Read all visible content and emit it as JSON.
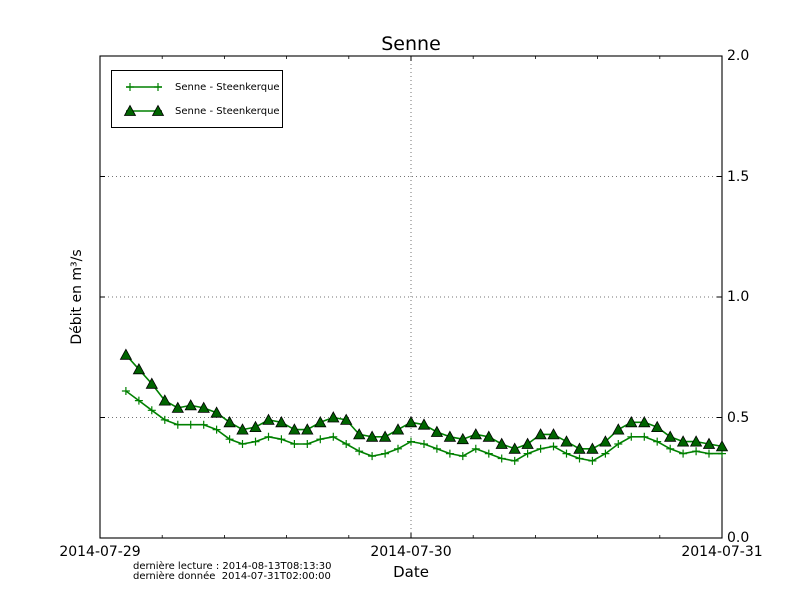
{
  "annotations": {
    "derniere_lecture": "dernière lecture : 2014-08-13T08:13:30",
    "derniere_donnee": "dernière donnée  2014-07-31T02:00:00"
  },
  "chart_data": {
    "type": "line",
    "title": "Senne",
    "xlabel": "Date",
    "ylabel": "Débit en m³/s",
    "x_axis": {
      "tick_labels": [
        "2014-07-29",
        "2014-07-30",
        "2014-07-31"
      ],
      "tick_positions_hours": [
        0,
        24,
        48
      ],
      "minor_tick_interval_hours": 4.8,
      "range_hours": [
        0,
        48
      ]
    },
    "y_axis": {
      "tick_labels": [
        "0.0",
        "0.5",
        "1.0",
        "1.5",
        "2.0"
      ],
      "tick_values": [
        0.0,
        0.5,
        1.0,
        1.5,
        2.0
      ],
      "range": [
        0.0,
        2.0
      ],
      "labels_side": "right"
    },
    "grid": {
      "style": "dotted",
      "y_lines": [
        0.5,
        1.0,
        1.5
      ],
      "x_lines_hours": [
        24
      ]
    },
    "legend": {
      "position": "upper-left",
      "entries": [
        "Senne - Steenkerque",
        "Senne - Steenkerque"
      ]
    },
    "series": [
      {
        "name": "Senne - Steenkerque",
        "marker": "plus",
        "line_color": "#008000",
        "x_start_hour": 2,
        "x_step_hours": 1,
        "values": [
          0.61,
          0.57,
          0.53,
          0.49,
          0.47,
          0.47,
          0.47,
          0.45,
          0.41,
          0.39,
          0.4,
          0.42,
          0.41,
          0.39,
          0.39,
          0.41,
          0.42,
          0.39,
          0.36,
          0.34,
          0.35,
          0.37,
          0.4,
          0.39,
          0.37,
          0.35,
          0.34,
          0.37,
          0.35,
          0.33,
          0.32,
          0.35,
          0.37,
          0.38,
          0.35,
          0.33,
          0.32,
          0.35,
          0.39,
          0.42,
          0.42,
          0.4,
          0.37,
          0.35,
          0.36,
          0.35,
          0.35
        ]
      },
      {
        "name": "Senne - Steenkerque",
        "marker": "triangle-up",
        "line_color": "#008000",
        "marker_fill": "#006400",
        "marker_edge": "#000000",
        "x_start_hour": 2,
        "x_step_hours": 1,
        "values": [
          0.76,
          0.7,
          0.64,
          0.57,
          0.54,
          0.55,
          0.54,
          0.52,
          0.48,
          0.45,
          0.46,
          0.49,
          0.48,
          0.45,
          0.45,
          0.48,
          0.5,
          0.49,
          0.43,
          0.42,
          0.42,
          0.45,
          0.48,
          0.47,
          0.44,
          0.42,
          0.41,
          0.43,
          0.42,
          0.39,
          0.37,
          0.39,
          0.43,
          0.43,
          0.4,
          0.37,
          0.37,
          0.4,
          0.45,
          0.48,
          0.48,
          0.46,
          0.42,
          0.4,
          0.4,
          0.39,
          0.38
        ]
      }
    ]
  }
}
